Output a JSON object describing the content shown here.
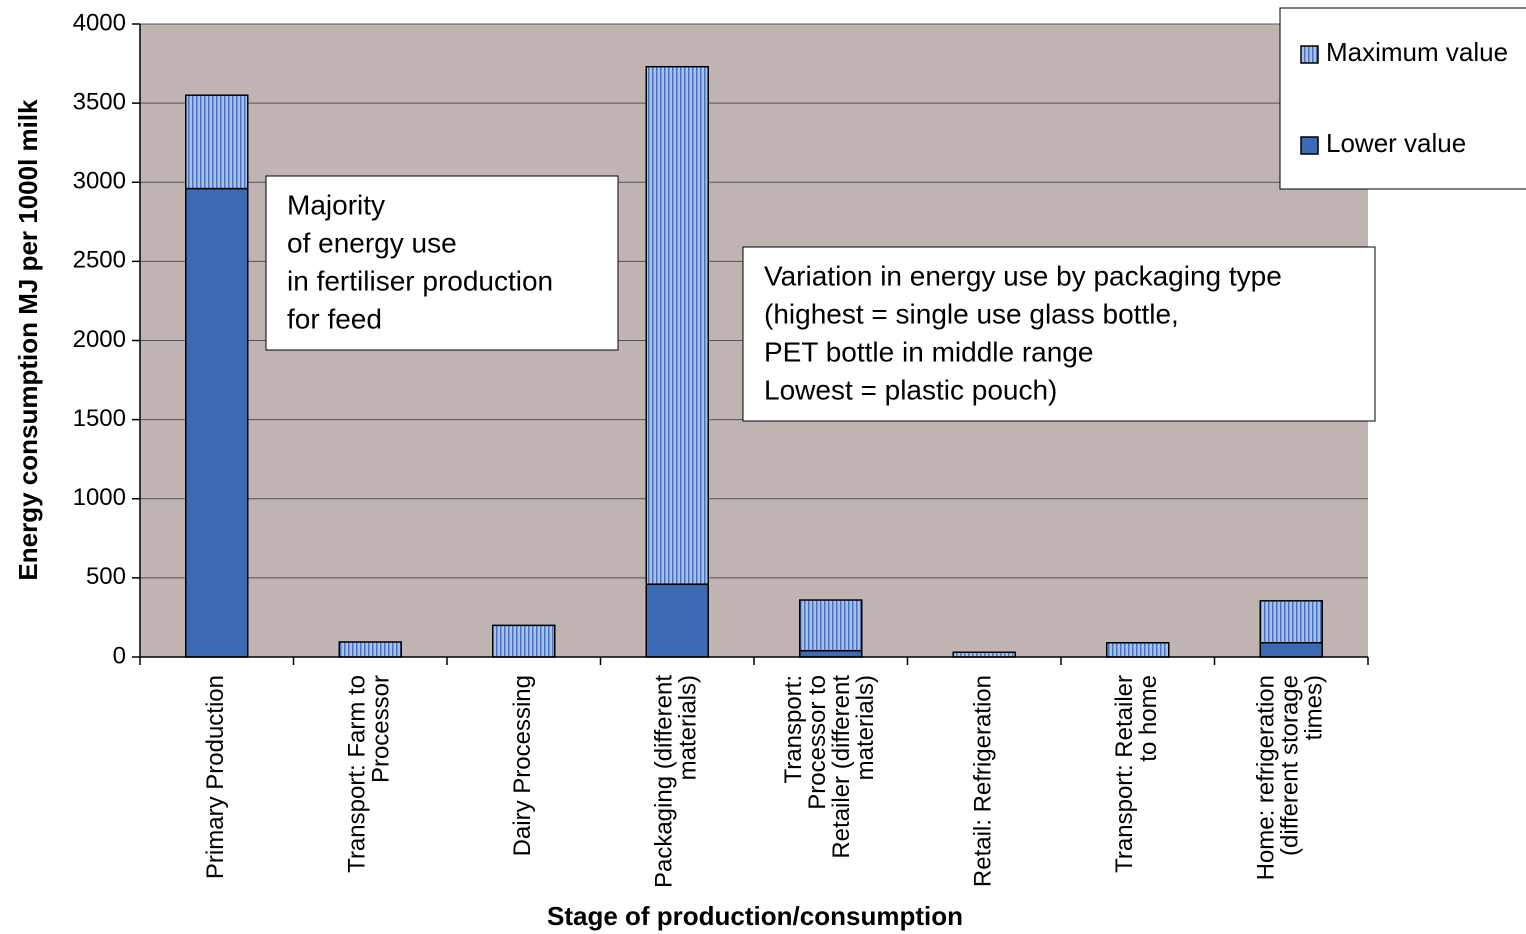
{
  "chart_data": {
    "type": "stacked_bar",
    "xlabel": "Stage of production/consumption",
    "ylabel": "Energy consumption MJ per 1000l milk",
    "categories": [
      "Primary Production",
      "Transport: Farm to\nProcessor",
      "Dairy Processing",
      "Packaging (different\nmaterials)",
      "Transport:\nProcessor to\nRetailer (different\nmaterials)",
      "Retail: Refrigeration",
      "Transport: Retailer\nto home",
      "Home: refrigeration\n(different storage\ntimes)"
    ],
    "series": [
      {
        "name": "Lower value",
        "color": "#3d6ab5",
        "values": [
          2960,
          0,
          0,
          460,
          40,
          0,
          0,
          90
        ]
      },
      {
        "name": "Maximum value",
        "color": "#a9c0ea",
        "hatch": "#4a74c0",
        "values": [
          590,
          95,
          200,
          3270,
          320,
          30,
          90,
          265
        ]
      }
    ],
    "ylim": [
      0,
      4000
    ],
    "yticks": [
      0,
      500,
      1000,
      1500,
      2000,
      2500,
      3000,
      3500,
      4000
    ],
    "grid": true,
    "legend": "top-right",
    "annotations": [
      {
        "lines": [
          "Majority",
          "of energy use",
          "in fertiliser production",
          "for feed"
        ]
      },
      {
        "lines": [
          "Variation in energy use by packaging type",
          "(highest = single use glass bottle,",
          "PET bottle in middle range",
          "Lowest = plastic pouch)"
        ]
      }
    ]
  }
}
